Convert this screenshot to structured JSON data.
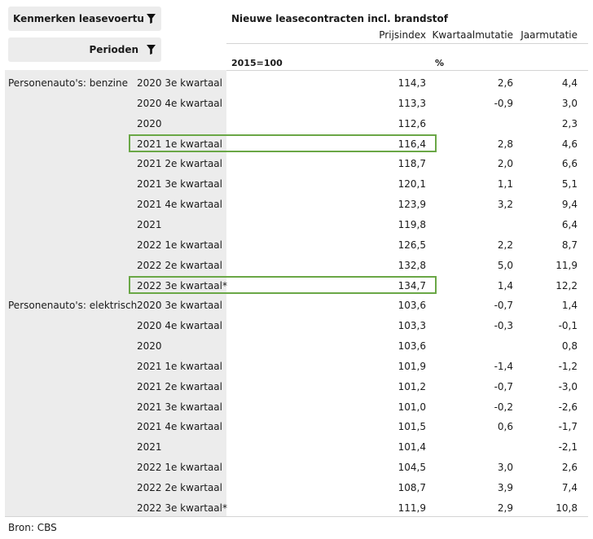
{
  "filters": {
    "dimension_label": "Kenmerken leasevoertuig",
    "period_label": "Perioden"
  },
  "table": {
    "title": "Nieuwe leasecontracten incl. brandstof",
    "columns": [
      "Prijsindex",
      "Kwartaalmutatie",
      "Jaarmutatie"
    ],
    "units": [
      "2015=100",
      "%"
    ],
    "groups": [
      {
        "name": "Personenauto's: benzine",
        "rows": [
          {
            "period": "2020 3e kwartaal",
            "index": "114,3",
            "qmut": "2,6",
            "ymut": "4,4"
          },
          {
            "period": "2020 4e kwartaal",
            "index": "113,3",
            "qmut": "-0,9",
            "ymut": "3,0"
          },
          {
            "period": "2020",
            "index": "112,6",
            "qmut": "",
            "ymut": "2,3"
          },
          {
            "period": "2021 1e kwartaal",
            "index": "116,4",
            "qmut": "2,8",
            "ymut": "4,6"
          },
          {
            "period": "2021 2e kwartaal",
            "index": "118,7",
            "qmut": "2,0",
            "ymut": "6,6"
          },
          {
            "period": "2021 3e kwartaal",
            "index": "120,1",
            "qmut": "1,1",
            "ymut": "5,1"
          },
          {
            "period": "2021 4e kwartaal",
            "index": "123,9",
            "qmut": "3,2",
            "ymut": "9,4"
          },
          {
            "period": "2021",
            "index": "119,8",
            "qmut": "",
            "ymut": "6,4"
          },
          {
            "period": "2022 1e kwartaal",
            "index": "126,5",
            "qmut": "2,2",
            "ymut": "8,7"
          },
          {
            "period": "2022 2e kwartaal",
            "index": "132,8",
            "qmut": "5,0",
            "ymut": "11,9"
          },
          {
            "period": "2022 3e kwartaal*",
            "index": "134,7",
            "qmut": "1,4",
            "ymut": "12,2"
          }
        ]
      },
      {
        "name": "Personenauto's: elektrisch",
        "rows": [
          {
            "period": "2020 3e kwartaal",
            "index": "103,6",
            "qmut": "-0,7",
            "ymut": "1,4"
          },
          {
            "period": "2020 4e kwartaal",
            "index": "103,3",
            "qmut": "-0,3",
            "ymut": "-0,1"
          },
          {
            "period": "2020",
            "index": "103,6",
            "qmut": "",
            "ymut": "0,8"
          },
          {
            "period": "2021 1e kwartaal",
            "index": "101,9",
            "qmut": "-1,4",
            "ymut": "-1,2"
          },
          {
            "period": "2021 2e kwartaal",
            "index": "101,2",
            "qmut": "-0,7",
            "ymut": "-3,0"
          },
          {
            "period": "2021 3e kwartaal",
            "index": "101,0",
            "qmut": "-0,2",
            "ymut": "-2,6"
          },
          {
            "period": "2021 4e kwartaal",
            "index": "101,5",
            "qmut": "0,6",
            "ymut": "-1,7"
          },
          {
            "period": "2021",
            "index": "101,4",
            "qmut": "",
            "ymut": "-2,1"
          },
          {
            "period": "2022 1e kwartaal",
            "index": "104,5",
            "qmut": "3,0",
            "ymut": "2,6"
          },
          {
            "period": "2022 2e kwartaal",
            "index": "108,7",
            "qmut": "3,9",
            "ymut": "7,4"
          },
          {
            "period": "2022 3e kwartaal*",
            "index": "111,9",
            "qmut": "2,9",
            "ymut": "10,8"
          }
        ]
      }
    ],
    "highlighted_rows": [
      {
        "group": "Personenauto's: benzine",
        "period": "2021 1e kwartaal"
      },
      {
        "group": "Personenauto's: benzine",
        "period": "2022 3e kwartaal*"
      }
    ],
    "highlight_color": "#6aa746"
  },
  "source": "Bron: CBS"
}
